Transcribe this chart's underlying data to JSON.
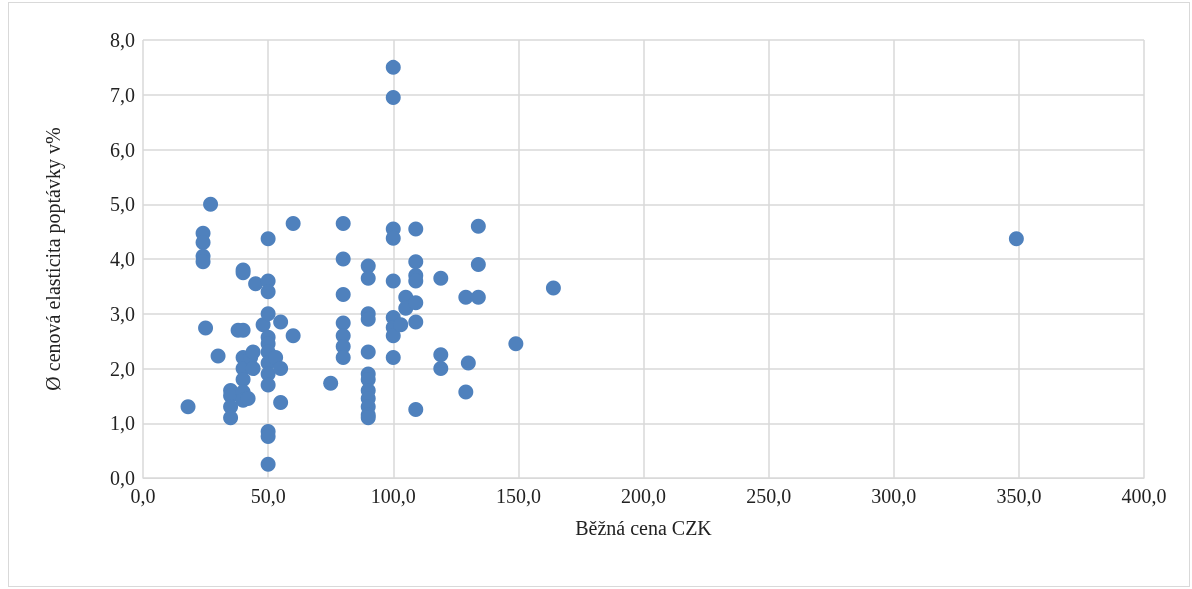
{
  "chart_data": {
    "type": "scatter",
    "xlabel": "Běžná cena CZK",
    "ylabel": "Ø cenová elasticita poptávky v%",
    "grid": true,
    "marker": "circle",
    "xlim": [
      0,
      400
    ],
    "ylim": [
      0,
      8
    ],
    "xticks": [
      {
        "value": 0,
        "label": "0,0"
      },
      {
        "value": 50,
        "label": "50,0"
      },
      {
        "value": 100,
        "label": "100,0"
      },
      {
        "value": 150,
        "label": "150,0"
      },
      {
        "value": 200,
        "label": "200,0"
      },
      {
        "value": 250,
        "label": "250,0"
      },
      {
        "value": 300,
        "label": "300,0"
      },
      {
        "value": 350,
        "label": "350,0"
      },
      {
        "value": 400,
        "label": "400,0"
      }
    ],
    "yticks": [
      {
        "value": 0,
        "label": "0,0"
      },
      {
        "value": 1,
        "label": "1,0"
      },
      {
        "value": 2,
        "label": "2,0"
      },
      {
        "value": 3,
        "label": "3,0"
      },
      {
        "value": 4,
        "label": "4,0"
      },
      {
        "value": 5,
        "label": "5,0"
      },
      {
        "value": 6,
        "label": "6,0"
      },
      {
        "value": 7,
        "label": "7,0"
      },
      {
        "value": 8,
        "label": "8,0"
      }
    ],
    "series": [
      {
        "color": "#4f81bd",
        "x": [
          18,
          27,
          24,
          24,
          24,
          24,
          25,
          30,
          35,
          35,
          35,
          35,
          40,
          40,
          38,
          40,
          40,
          40,
          40,
          40,
          40,
          43,
          44,
          45,
          48,
          50,
          50,
          50,
          50,
          50,
          50,
          50,
          50,
          50,
          50,
          50,
          50,
          50,
          53,
          55,
          55,
          55,
          60,
          60,
          44,
          42,
          75,
          80,
          80,
          80,
          80,
          80,
          80,
          80,
          90,
          90,
          90,
          90,
          90,
          90,
          90,
          90,
          90,
          90,
          90,
          90,
          100,
          100,
          100,
          100,
          100,
          100,
          100,
          100,
          100,
          103,
          105,
          105,
          109,
          109,
          109,
          109,
          109,
          109,
          109,
          119,
          119,
          119,
          129,
          129,
          130,
          134,
          134,
          134,
          149,
          164,
          349
        ],
        "values": [
          1.3,
          5.0,
          4.47,
          4.3,
          4.05,
          3.95,
          2.74,
          2.23,
          1.6,
          1.5,
          1.3,
          1.1,
          3.8,
          3.75,
          2.7,
          2.7,
          2.2,
          2.0,
          1.8,
          1.57,
          1.42,
          2.2,
          2.3,
          3.55,
          2.8,
          4.37,
          3.6,
          3.4,
          3.0,
          2.57,
          2.45,
          2.3,
          2.1,
          1.9,
          1.7,
          0.85,
          0.76,
          0.25,
          2.2,
          2.85,
          2.0,
          1.38,
          4.65,
          2.6,
          2.0,
          1.45,
          1.73,
          4.65,
          4.0,
          3.35,
          2.83,
          2.6,
          2.4,
          2.2,
          3.87,
          3.65,
          3.0,
          2.9,
          2.3,
          1.9,
          1.8,
          1.6,
          1.45,
          1.3,
          1.15,
          1.1,
          7.5,
          6.95,
          4.55,
          4.38,
          3.6,
          2.93,
          2.75,
          2.6,
          2.2,
          2.8,
          3.3,
          3.1,
          4.55,
          3.95,
          3.7,
          3.6,
          3.2,
          2.85,
          1.25,
          3.65,
          2.25,
          2.0,
          3.3,
          1.57,
          2.1,
          4.6,
          3.9,
          3.3,
          2.45,
          3.47,
          4.37
        ]
      }
    ]
  }
}
